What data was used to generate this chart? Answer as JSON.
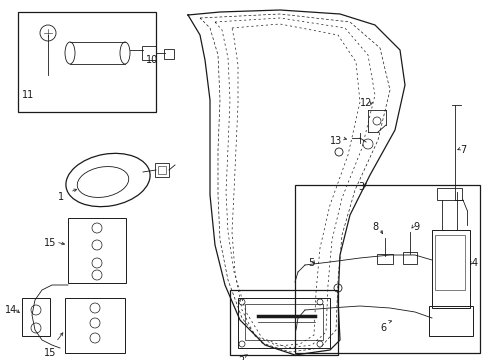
{
  "bg_color": "#ffffff",
  "line_color": "#1a1a1a",
  "lw_thin": 0.6,
  "lw_med": 0.9,
  "figsize": [
    4.89,
    3.6
  ],
  "dpi": 100
}
